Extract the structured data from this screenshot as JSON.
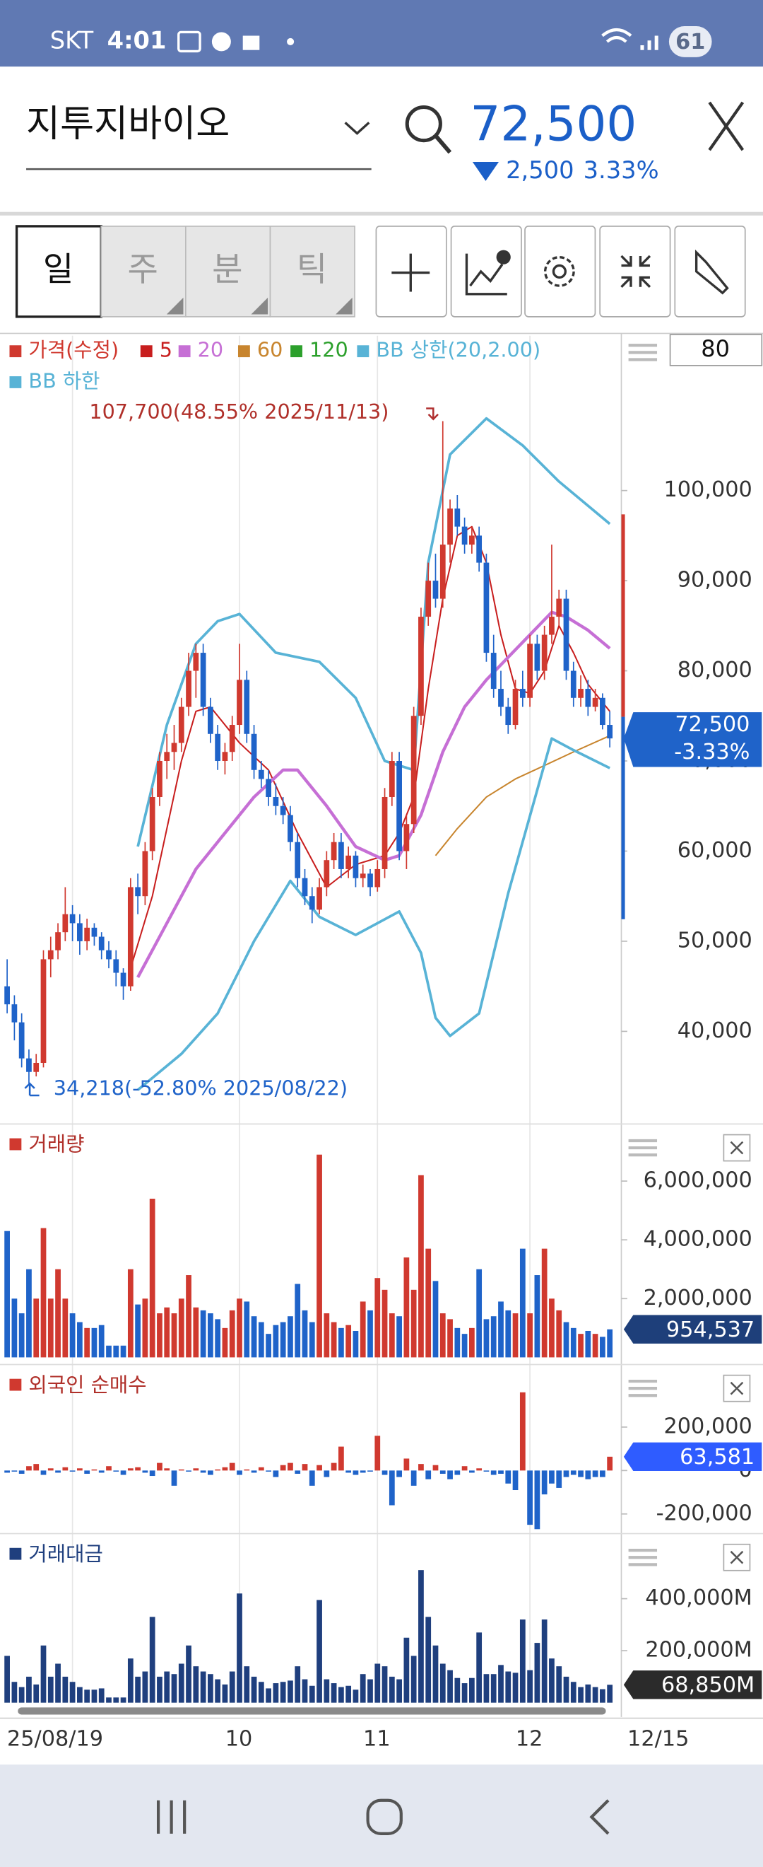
{
  "status_bar": {
    "carrier": "SKT",
    "time": "4:01",
    "battery": "61"
  },
  "header": {
    "name": "지투지바이오",
    "price": "72,500",
    "change": "2,500",
    "change_pct": "3.33%"
  },
  "toolbar": {
    "tabs": [
      "일",
      "주",
      "분",
      "틱"
    ],
    "period": "80"
  },
  "x_axis": {
    "labels": [
      {
        "value": 9,
        "label": "25/08/19"
      },
      {
        "value": 32,
        "label": "10"
      },
      {
        "value": 51,
        "label": "11"
      },
      {
        "value": 72,
        "label": "12"
      }
    ],
    "last": "12/15"
  },
  "chart_data": [
    {
      "type": "candlestick",
      "name": "가격(수정)",
      "up_color": "#d0392f",
      "down_color": "#1f63c9",
      "ylim": [
        30250,
        117170
      ],
      "yticks": [
        {
          "value": 40000,
          "label": "40,000"
        },
        {
          "value": 50000,
          "label": "50,000"
        },
        {
          "value": 60000,
          "label": "60,000"
        },
        {
          "value": 70000,
          "label": "70,000"
        },
        {
          "value": 80000,
          "label": "80,000"
        },
        {
          "value": 90000,
          "label": "90,000"
        },
        {
          "value": 100000,
          "label": "100,000"
        }
      ],
      "candles": [
        [
          45000,
          48000,
          42000,
          43000
        ],
        [
          43000,
          44000,
          39000,
          41000
        ],
        [
          41000,
          42000,
          36000,
          37000
        ],
        [
          37000,
          38000,
          34218,
          35500
        ],
        [
          35500,
          37500,
          35000,
          36500
        ],
        [
          36500,
          49000,
          36000,
          48000
        ],
        [
          48000,
          50500,
          46000,
          49000
        ],
        [
          49000,
          52000,
          48000,
          51000
        ],
        [
          51000,
          56000,
          50000,
          53000
        ],
        [
          53000,
          54000,
          50000,
          52000
        ],
        [
          52000,
          53000,
          48500,
          50000
        ],
        [
          50000,
          52500,
          49000,
          51500
        ],
        [
          51500,
          52000,
          49500,
          50500
        ],
        [
          50500,
          51000,
          48000,
          49000
        ],
        [
          49000,
          50000,
          47000,
          48000
        ],
        [
          48000,
          49000,
          45000,
          46500
        ],
        [
          46500,
          47000,
          43500,
          45000
        ],
        [
          45000,
          57000,
          44500,
          56000
        ],
        [
          56000,
          57500,
          53000,
          55000
        ],
        [
          55000,
          61000,
          54000,
          60000
        ],
        [
          60000,
          67000,
          59000,
          66000
        ],
        [
          66000,
          71000,
          65000,
          70000
        ],
        [
          70000,
          73000,
          68000,
          71000
        ],
        [
          71000,
          74000,
          69000,
          72000
        ],
        [
          72000,
          77000,
          71000,
          76000
        ],
        [
          76000,
          82000,
          75000,
          80000
        ],
        [
          80000,
          83000,
          77000,
          82000
        ],
        [
          82000,
          83000,
          75000,
          76000
        ],
        [
          76000,
          77000,
          72000,
          73000
        ],
        [
          73000,
          74000,
          69000,
          70000
        ],
        [
          70000,
          72000,
          68500,
          71000
        ],
        [
          71000,
          75000,
          70000,
          74000
        ],
        [
          74000,
          83000,
          73000,
          79000
        ],
        [
          79000,
          80000,
          72000,
          73000
        ],
        [
          73000,
          74000,
          68000,
          69000
        ],
        [
          69000,
          70000,
          67000,
          68000
        ],
        [
          68000,
          69000,
          65000,
          66000
        ],
        [
          66000,
          67500,
          64000,
          65000
        ],
        [
          65000,
          66000,
          63000,
          64000
        ],
        [
          64000,
          65000,
          60000,
          61000
        ],
        [
          61000,
          62000,
          56000,
          57000
        ],
        [
          57000,
          58000,
          54000,
          55000
        ],
        [
          55000,
          56000,
          52000,
          53500
        ],
        [
          53500,
          57000,
          53000,
          56000
        ],
        [
          56000,
          60000,
          55000,
          59000
        ],
        [
          59000,
          62000,
          58000,
          61000
        ],
        [
          61000,
          62000,
          57000,
          58000
        ],
        [
          58000,
          60500,
          57000,
          59500
        ],
        [
          59500,
          60000,
          56000,
          57000
        ],
        [
          57000,
          58500,
          56000,
          57500
        ],
        [
          57500,
          58000,
          55000,
          56000
        ],
        [
          56000,
          59000,
          55500,
          58000
        ],
        [
          58000,
          67000,
          57000,
          66000
        ],
        [
          66000,
          71000,
          65000,
          70000
        ],
        [
          70000,
          71000,
          59000,
          60000
        ],
        [
          60000,
          64000,
          58000,
          63000
        ],
        [
          63000,
          76000,
          62000,
          75000
        ],
        [
          75000,
          87000,
          74000,
          86000
        ],
        [
          86000,
          92000,
          85000,
          90000
        ],
        [
          90000,
          93000,
          87000,
          88000
        ],
        [
          88000,
          107700,
          87000,
          94000
        ],
        [
          94000,
          99000,
          92000,
          98000
        ],
        [
          98000,
          99500,
          95000,
          96000
        ],
        [
          96000,
          97000,
          93000,
          94000
        ],
        [
          94000,
          96000,
          93000,
          95000
        ],
        [
          95000,
          96000,
          91000,
          92000
        ],
        [
          92000,
          93000,
          81000,
          82000
        ],
        [
          82000,
          84000,
          77000,
          78000
        ],
        [
          78000,
          80000,
          75000,
          76000
        ],
        [
          76000,
          77000,
          73000,
          74000
        ],
        [
          74000,
          79000,
          73500,
          78000
        ],
        [
          78000,
          80000,
          76000,
          77000
        ],
        [
          77000,
          84000,
          76000,
          83000
        ],
        [
          83000,
          84000,
          79000,
          80000
        ],
        [
          80000,
          85000,
          79000,
          84000
        ],
        [
          84000,
          94000,
          83000,
          86000
        ],
        [
          86000,
          89000,
          85000,
          88000
        ],
        [
          88000,
          89000,
          79000,
          80000
        ],
        [
          80000,
          81000,
          76000,
          77000
        ],
        [
          77000,
          79500,
          76000,
          78000
        ],
        [
          78000,
          79000,
          75000,
          76000
        ],
        [
          76000,
          78000,
          75500,
          77000
        ],
        [
          77000,
          77500,
          73500,
          74000
        ],
        [
          74000,
          75500,
          71500,
          72500
        ]
      ],
      "series": [
        {
          "name": "5",
          "color": "#c81e1e",
          "x": [
            17,
            20,
            24,
            26,
            28,
            32,
            36,
            40,
            44,
            48,
            52,
            54,
            56,
            58,
            60,
            62,
            64,
            66,
            68,
            70,
            72,
            74,
            76,
            78,
            80,
            83
          ],
          "values": [
            47000,
            55000,
            70000,
            75500,
            76000,
            72000,
            69000,
            62000,
            56000,
            58500,
            59500,
            62000,
            66000,
            78000,
            88000,
            95000,
            96000,
            92000,
            84000,
            78000,
            77500,
            80000,
            85000,
            82000,
            78500,
            75500
          ]
        },
        {
          "name": "20",
          "color": "#c66fd5",
          "x": [
            18,
            22,
            26,
            30,
            34,
            38,
            40,
            44,
            48,
            52,
            54,
            57,
            60,
            63,
            66,
            69,
            72,
            75,
            77,
            80,
            83
          ],
          "values": [
            46000,
            52000,
            58000,
            62000,
            66000,
            69000,
            69000,
            65000,
            60500,
            59000,
            59500,
            64000,
            71000,
            76000,
            79000,
            81500,
            84000,
            86500,
            86000,
            84500,
            82500
          ]
        },
        {
          "name": "60",
          "color": "#c8852e",
          "x": [
            59,
            62,
            66,
            70,
            74,
            78,
            83
          ],
          "values": [
            59500,
            62500,
            66000,
            68000,
            69500,
            71000,
            72800
          ]
        },
        {
          "name": "120",
          "color": "#2ca02c"
        },
        {
          "name": "BB 상한(20,2.00)",
          "color": "#58b3d6",
          "x": [
            18,
            22,
            26,
            29,
            32,
            37,
            43,
            48,
            52,
            56,
            58,
            61,
            66,
            71,
            76,
            83
          ],
          "values": [
            60500,
            74000,
            83000,
            85500,
            86300,
            82000,
            81000,
            77000,
            70000,
            69000,
            92000,
            104000,
            108000,
            105000,
            101000,
            96300
          ]
        },
        {
          "name": "BB 하한",
          "color": "#58b3d6",
          "x": [
            18,
            24,
            29,
            34,
            39,
            43,
            48,
            54,
            57,
            59,
            61,
            65,
            69,
            75,
            78,
            83
          ],
          "values": [
            33500,
            37500,
            42000,
            50000,
            56700,
            52700,
            50700,
            53300,
            48700,
            41500,
            39500,
            42000,
            55300,
            72500,
            71200,
            69200
          ]
        }
      ],
      "annotations": [
        "107,700(48.55% 2025/11/13)",
        "34,218(-52.80% 2025/08/22)"
      ],
      "current_label": {
        "value": 72500,
        "label": "72,500"
      },
      "current_change": "-3.33%"
    },
    {
      "type": "bar",
      "title": "거래량",
      "color_source": "candles",
      "ylim": [
        0,
        7780000
      ],
      "yticks": [
        {
          "value": 2000000,
          "label": "2,000,000"
        },
        {
          "value": 4000000,
          "label": "4,000,000"
        },
        {
          "value": 6000000,
          "label": "6,000,000"
        }
      ],
      "values": [
        4300000,
        2000000,
        1500000,
        3000000,
        2000000,
        4400000,
        2000000,
        3000000,
        2000000,
        1500000,
        1200000,
        1000000,
        1000000,
        1100000,
        400000,
        400000,
        400000,
        3000000,
        1800000,
        2000000,
        5400000,
        1500000,
        1700000,
        1500000,
        2000000,
        2800000,
        1700000,
        1600000,
        1500000,
        1300000,
        1000000,
        1600000,
        2000000,
        1900000,
        1400000,
        1200000,
        800000,
        1100000,
        1200000,
        1400000,
        2500000,
        1600000,
        1200000,
        6900000,
        1500000,
        1200000,
        1000000,
        1100000,
        900000,
        1900000,
        1600000,
        2700000,
        2300000,
        1500000,
        1400000,
        3400000,
        2300000,
        6200000,
        3700000,
        2600000,
        1500000,
        1300000,
        1000000,
        800000,
        1000000,
        3000000,
        1300000,
        1400000,
        1900000,
        1600000,
        1500000,
        3700000,
        1500000,
        2800000,
        3700000,
        2000000,
        1600000,
        1200000,
        1000000,
        800000,
        900000,
        800000,
        700000,
        954537
      ],
      "current_label": {
        "value": 954537,
        "label": "954,537"
      },
      "label_color": "#1e3f7a"
    },
    {
      "type": "diverging-bar",
      "title": "외국인 순매수",
      "up_color": "#d0392f",
      "down_color": "#1f63c9",
      "ylim": [
        -274000,
        466000
      ],
      "yticks": [
        {
          "value": 200000,
          "label": "200,000"
        },
        0,
        {
          "value": -200000,
          "label": "-200,000"
        }
      ],
      "values": [
        -10000,
        -5000,
        -15000,
        20000,
        30000,
        -20000,
        10000,
        -10000,
        15000,
        -5000,
        10000,
        -15000,
        5000,
        -10000,
        20000,
        -5000,
        -20000,
        10000,
        15000,
        -10000,
        -25000,
        35000,
        10000,
        -70000,
        5000,
        -5000,
        10000,
        -10000,
        -20000,
        5000,
        15000,
        35000,
        -20000,
        5000,
        -10000,
        15000,
        -5000,
        -30000,
        25000,
        35000,
        -15000,
        30000,
        -70000,
        25000,
        -30000,
        35000,
        110000,
        -10000,
        -20000,
        -10000,
        -5000,
        160000,
        -20000,
        -160000,
        -30000,
        55000,
        -70000,
        30000,
        -40000,
        25000,
        -15000,
        -40000,
        -20000,
        20000,
        -10000,
        10000,
        -5000,
        -20000,
        -15000,
        -60000,
        -90000,
        360000,
        -250000,
        -270000,
        -110000,
        -60000,
        -80000,
        -30000,
        -20000,
        -30000,
        -40000,
        -30000,
        -30000,
        63581
      ],
      "current_label": {
        "value": 63581,
        "label": "63,581"
      },
      "label_color": "#2f5cff"
    },
    {
      "type": "bar",
      "title": "거래대금",
      "color": "#1f3f7e",
      "ylim": [
        0,
        632000
      ],
      "yticks": [
        {
          "value": 200000,
          "label": "200,000M"
        },
        {
          "value": 400000,
          "label": "400,000M"
        }
      ],
      "values": [
        180000,
        80000,
        60000,
        100000,
        70000,
        220000,
        100000,
        150000,
        100000,
        80000,
        60000,
        50000,
        50000,
        55000,
        20000,
        20000,
        20000,
        170000,
        100000,
        120000,
        330000,
        100000,
        120000,
        110000,
        150000,
        220000,
        140000,
        120000,
        110000,
        90000,
        70000,
        120000,
        420000,
        140000,
        100000,
        80000,
        55000,
        75000,
        80000,
        85000,
        140000,
        90000,
        65000,
        395000,
        90000,
        75000,
        60000,
        65000,
        50000,
        110000,
        90000,
        150000,
        140000,
        100000,
        90000,
        250000,
        180000,
        510000,
        330000,
        220000,
        150000,
        125000,
        95000,
        75000,
        95000,
        270000,
        110000,
        110000,
        145000,
        120000,
        115000,
        320000,
        125000,
        230000,
        320000,
        170000,
        140000,
        100000,
        80000,
        60000,
        70000,
        60000,
        52000,
        68850
      ],
      "current_label": {
        "value": 68850,
        "label": "68,850M"
      },
      "label_color": "#2b2b2b"
    }
  ]
}
